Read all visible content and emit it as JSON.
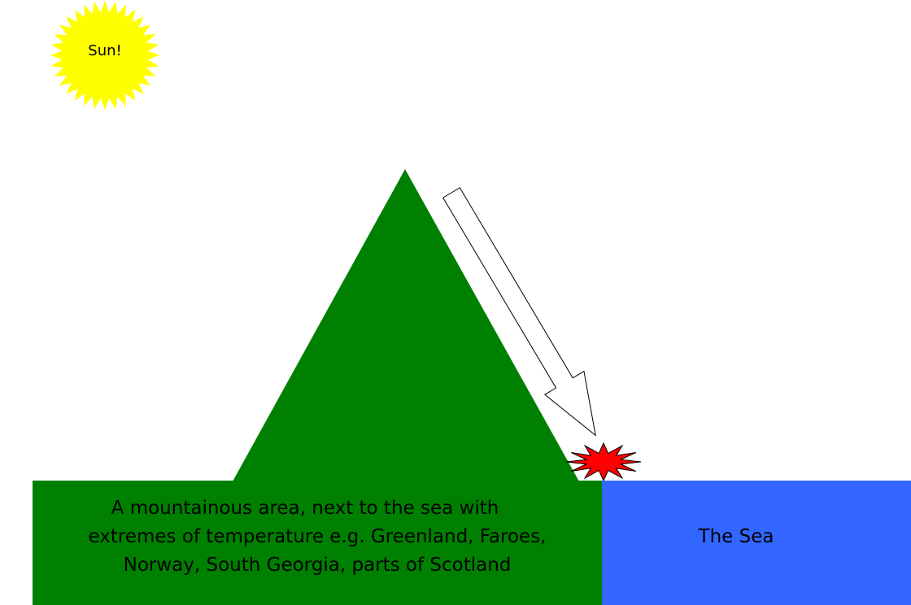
{
  "sun": {
    "label": "Sun!"
  },
  "land": {
    "lines": [
      "A mountainous area, next to the sea with",
      "extremes of temperature e.g. Greenland, Faroes,",
      "Norway, South Georgia, parts of Scotland"
    ]
  },
  "sea": {
    "label": "The Sea"
  }
}
